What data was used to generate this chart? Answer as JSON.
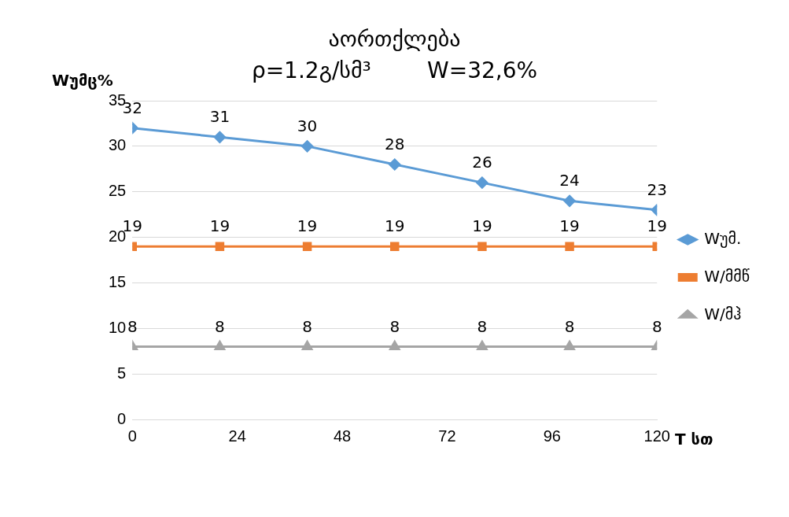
{
  "chart_data": {
    "type": "line",
    "title": "აორთქლება",
    "subtitle": "ρ=1.2გ/სმ³        W=32,6%",
    "ylabel": "Wუმც%",
    "xlabel": "T სთ",
    "x": [
      0,
      20,
      40,
      60,
      80,
      100,
      120
    ],
    "series": [
      {
        "name": "Wუმ.",
        "color": "#5b9bd5",
        "marker": "diamond",
        "values": [
          32,
          31,
          30,
          28,
          26,
          24,
          23
        ]
      },
      {
        "name": "W/მმწ",
        "color": "#ed7d31",
        "marker": "square",
        "values": [
          19,
          19,
          19,
          19,
          19,
          19,
          19
        ]
      },
      {
        "name": "W/მჰ",
        "color": "#a5a5a5",
        "marker": "triangle",
        "values": [
          8,
          8,
          8,
          8,
          8,
          8,
          8
        ]
      }
    ],
    "xlim": [
      0,
      120
    ],
    "xticks": [
      0,
      24,
      48,
      72,
      96,
      120
    ],
    "ylim": [
      0,
      35
    ],
    "yticks": [
      0,
      5,
      10,
      15,
      20,
      25,
      30,
      35
    ],
    "grid": "y",
    "legend": "right",
    "data_labels": true,
    "line_style": "solid"
  }
}
